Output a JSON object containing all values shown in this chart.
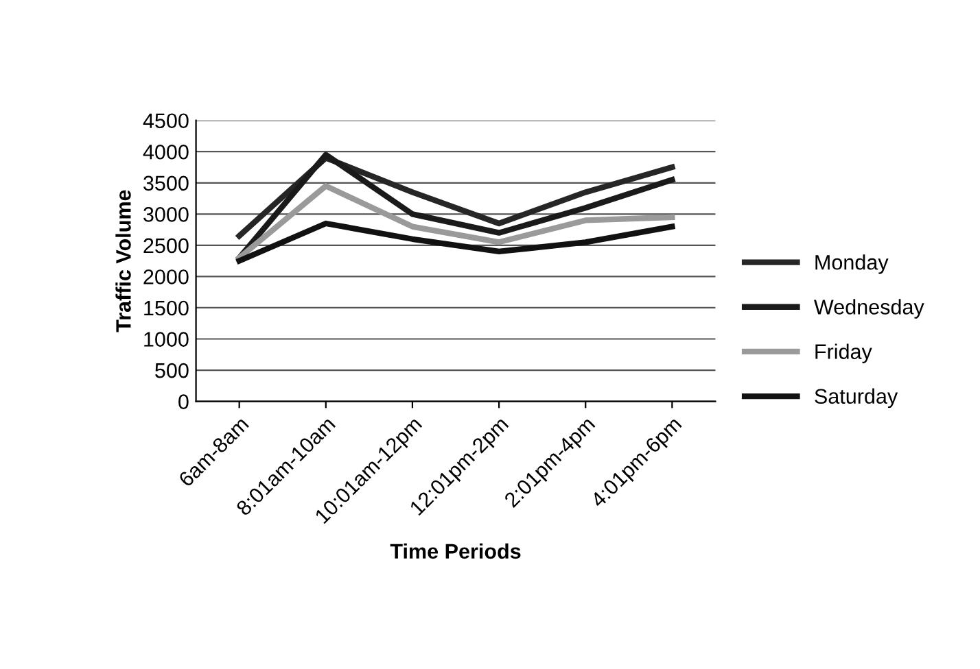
{
  "chart_data": {
    "type": "line",
    "xlabel": "Time Periods",
    "ylabel": "Traffic Volume",
    "categories": [
      "6am-8am",
      "8:01am-10am",
      "10:01am-12pm",
      "12:01pm-2pm",
      "2:01pm-4pm",
      "4:01pm-6pm"
    ],
    "series": [
      {
        "name": "Monday",
        "color": "#262626",
        "values": [
          2650,
          3900,
          3350,
          2850,
          3350,
          3750
        ]
      },
      {
        "name": "Wednesday",
        "color": "#1a1a1a",
        "values": [
          2300,
          3950,
          3000,
          2700,
          3100,
          3550
        ]
      },
      {
        "name": "Friday",
        "color": "#9a9a9a",
        "values": [
          2300,
          3450,
          2800,
          2550,
          2900,
          2950
        ]
      },
      {
        "name": "Saturday",
        "color": "#111111",
        "values": [
          2250,
          2850,
          2600,
          2400,
          2550,
          2800
        ]
      }
    ],
    "ylim": [
      0,
      4500
    ],
    "yticks": [
      0,
      500,
      1000,
      1500,
      2000,
      2500,
      3000,
      3500,
      4000,
      4500
    ],
    "grid": "y",
    "legend": "right",
    "marker": "none",
    "line_style": "solid"
  }
}
